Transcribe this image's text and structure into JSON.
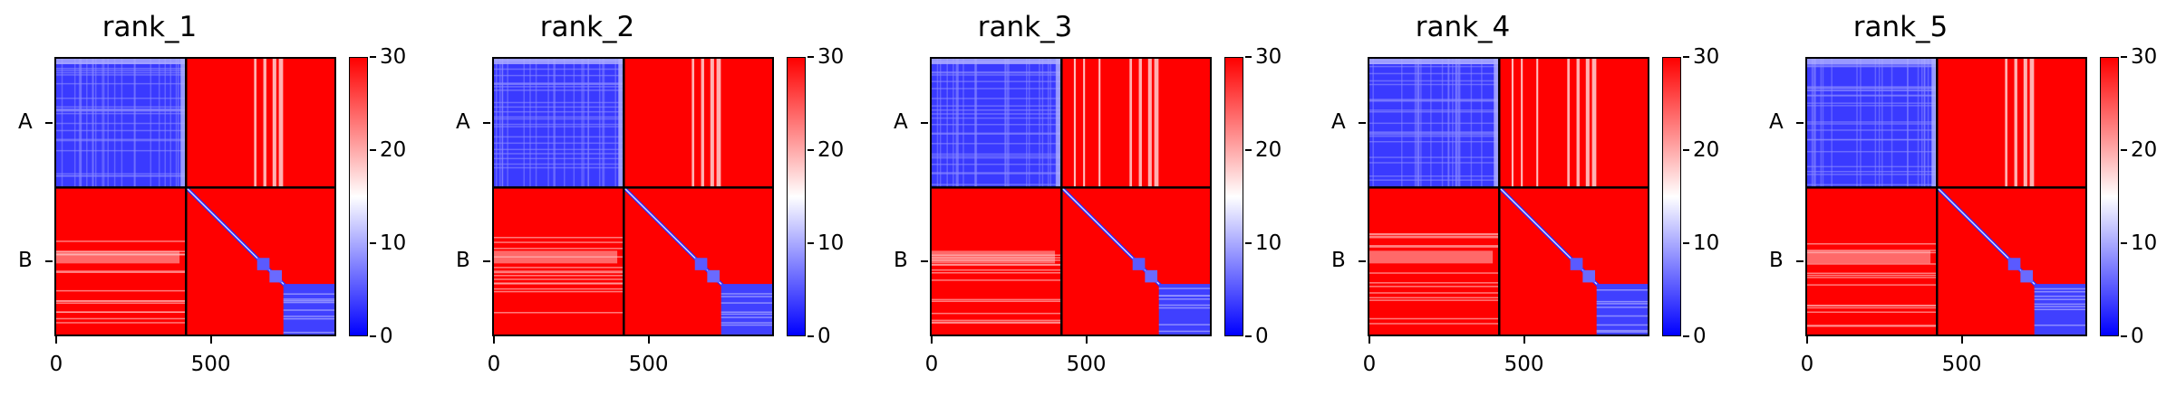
{
  "chart_data": [
    {
      "type": "heatmap",
      "title": "rank_1",
      "x_ticks": [
        "0",
        "500"
      ],
      "y_ticks": [
        "A",
        "B"
      ],
      "colorbar": {
        "ticks": [
          "0",
          "10",
          "20",
          "30"
        ],
        "range": [
          0,
          30
        ],
        "colormap": [
          "#0000ff",
          "#ffffff",
          "#ff0000"
        ]
      },
      "chain_boundary": 420,
      "matrix_size": 900,
      "chains": [
        "A",
        "B"
      ]
    },
    {
      "type": "heatmap",
      "title": "rank_2",
      "x_ticks": [
        "0",
        "500"
      ],
      "y_ticks": [
        "A",
        "B"
      ],
      "colorbar": {
        "ticks": [
          "0",
          "10",
          "20",
          "30"
        ],
        "range": [
          0,
          30
        ],
        "colormap": [
          "#0000ff",
          "#ffffff",
          "#ff0000"
        ]
      },
      "chain_boundary": 420,
      "matrix_size": 900,
      "chains": [
        "A",
        "B"
      ]
    },
    {
      "type": "heatmap",
      "title": "rank_3",
      "x_ticks": [
        "0",
        "500"
      ],
      "y_ticks": [
        "A",
        "B"
      ],
      "colorbar": {
        "ticks": [
          "0",
          "10",
          "20",
          "30"
        ],
        "range": [
          0,
          30
        ],
        "colormap": [
          "#0000ff",
          "#ffffff",
          "#ff0000"
        ]
      },
      "chain_boundary": 420,
      "matrix_size": 900,
      "chains": [
        "A",
        "B"
      ]
    },
    {
      "type": "heatmap",
      "title": "rank_4",
      "x_ticks": [
        "0",
        "500"
      ],
      "y_ticks": [
        "A",
        "B"
      ],
      "colorbar": {
        "ticks": [
          "0",
          "10",
          "20",
          "30"
        ],
        "range": [
          0,
          30
        ],
        "colormap": [
          "#0000ff",
          "#ffffff",
          "#ff0000"
        ]
      },
      "chain_boundary": 420,
      "matrix_size": 900,
      "chains": [
        "A",
        "B"
      ]
    },
    {
      "type": "heatmap",
      "title": "rank_5",
      "x_ticks": [
        "0",
        "500"
      ],
      "y_ticks": [
        "A",
        "B"
      ],
      "colorbar": {
        "ticks": [
          "0",
          "10",
          "20",
          "30"
        ],
        "range": [
          0,
          30
        ],
        "colormap": [
          "#0000ff",
          "#ffffff",
          "#ff0000"
        ]
      },
      "chain_boundary": 420,
      "matrix_size": 900,
      "chains": [
        "A",
        "B"
      ]
    }
  ]
}
